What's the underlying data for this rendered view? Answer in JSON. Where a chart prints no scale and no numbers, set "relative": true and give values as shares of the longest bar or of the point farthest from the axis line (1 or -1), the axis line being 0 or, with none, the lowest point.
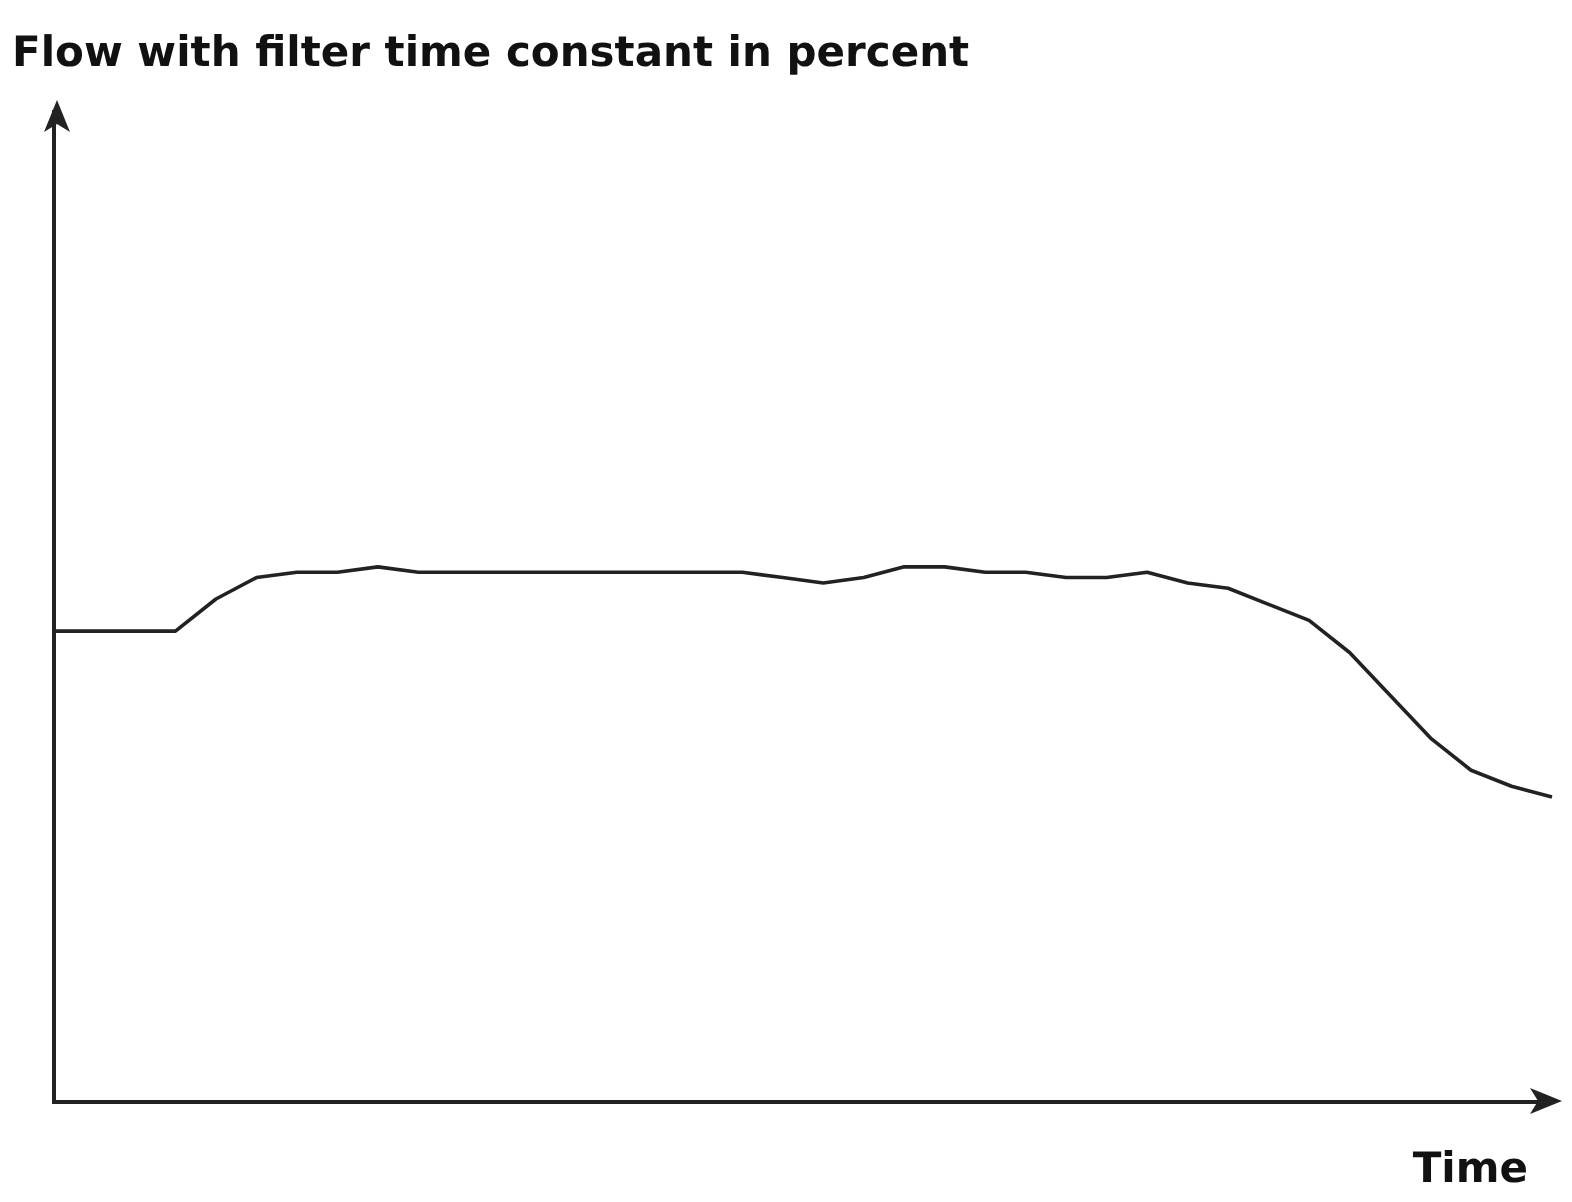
{
  "chart_data": {
    "type": "line",
    "title": "Flow with filter time constant in percent",
    "xlabel": "Time",
    "relative": true,
    "color": "#222222",
    "categories": [
      null,
      null,
      null,
      null,
      null,
      null,
      null,
      null,
      null,
      null,
      null,
      null,
      null,
      null,
      null,
      null,
      null,
      null,
      null,
      null,
      null,
      null,
      null,
      null,
      null,
      null,
      null,
      null,
      null,
      null,
      null,
      null,
      null,
      null,
      null,
      null,
      null,
      null
    ],
    "values": [
      0.88,
      0.88,
      0.88,
      0.88,
      0.94,
      0.98,
      0.99,
      0.99,
      1.0,
      0.99,
      0.99,
      0.99,
      0.99,
      0.99,
      0.99,
      0.99,
      0.99,
      0.99,
      0.98,
      0.97,
      0.98,
      1.0,
      1.0,
      0.99,
      0.99,
      0.98,
      0.98,
      0.99,
      0.97,
      0.96,
      0.93,
      0.9,
      0.84,
      0.76,
      0.68,
      0.62,
      0.59,
      0.57
    ]
  }
}
